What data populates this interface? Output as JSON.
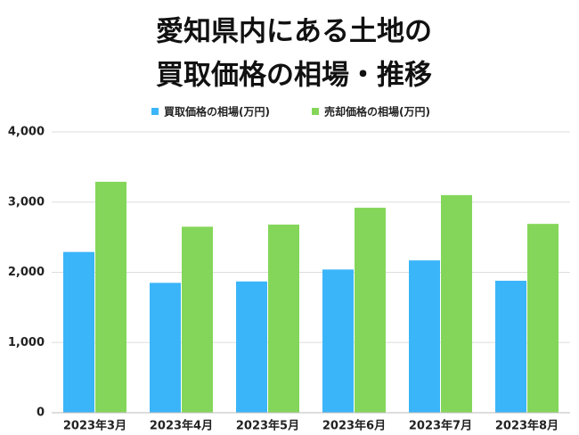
{
  "chart_data": {
    "type": "bar",
    "title": [
      "愛知県内にある土地の",
      "買取価格の相場・推移"
    ],
    "categories": [
      "2023年3月",
      "2023年4月",
      "2023年5月",
      "2023年6月",
      "2023年7月",
      "2023年8月"
    ],
    "series": [
      {
        "name": "買取価格の相場(万円)",
        "color": "#3bb5f9",
        "values": [
          2290,
          1850,
          1870,
          2040,
          2170,
          1880
        ]
      },
      {
        "name": "売却価格の相場(万円)",
        "color": "#84d65a",
        "values": [
          3290,
          2650,
          2680,
          2920,
          3100,
          2690
        ]
      }
    ],
    "ylim": [
      0,
      4000
    ],
    "yticks": [
      0,
      {
        "value": 1000,
        "label": "1,000"
      },
      {
        "value": 2000,
        "label": "2,000"
      },
      {
        "value": 3000,
        "label": "3,000"
      },
      {
        "value": 4000,
        "label": "4,000"
      }
    ],
    "grid": true,
    "legend": "top"
  }
}
